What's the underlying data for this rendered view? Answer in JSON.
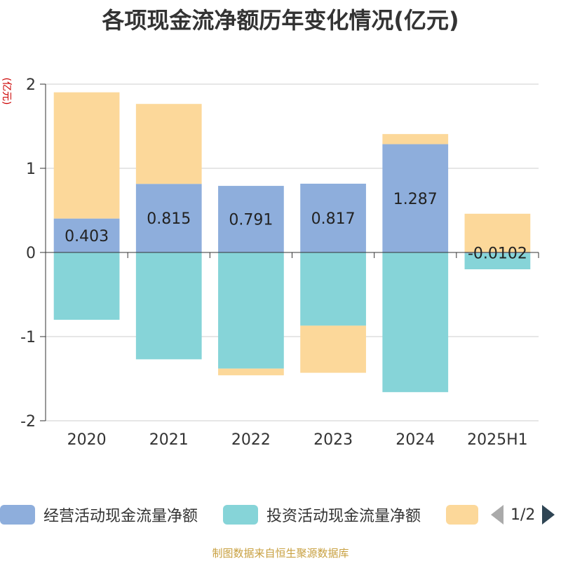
{
  "title": "各项现金流净额历年变化情况(亿元)",
  "unit_label": "(亿元)",
  "source_text": "制图数据来自恒生聚源数据库",
  "legend": {
    "items": [
      {
        "label": "经营活动现金流量净额",
        "color": "#8eaedc"
      },
      {
        "label": "投资活动现金流量净额",
        "color": "#86d4d8"
      },
      {
        "label": "",
        "color": "#fcd89a"
      }
    ],
    "pager": "1/2"
  },
  "chart_data": {
    "type": "bar",
    "stacked": true,
    "categories": [
      "2020",
      "2021",
      "2022",
      "2023",
      "2024",
      "2025H1"
    ],
    "ylim": [
      -2,
      2
    ],
    "yticks": [
      "-2",
      "-1",
      "0",
      "1",
      "2"
    ],
    "grid": true,
    "legend_position": "bottom",
    "series": [
      {
        "name": "经营活动现金流量净额",
        "color": "#8eaedc",
        "values": [
          0.403,
          0.815,
          0.791,
          0.817,
          1.287,
          -0.01
        ],
        "labels": [
          "0.403",
          "0.815",
          "0.791",
          "0.817",
          "1.287",
          "-0.0102"
        ]
      },
      {
        "name": "投资活动现金流量净额",
        "color": "#86d4d8",
        "values": [
          -0.8,
          -1.27,
          -1.38,
          -0.87,
          -1.66,
          -0.19
        ]
      },
      {
        "color": "#fcd89a",
        "values": [
          1.5,
          0.95,
          -0.08,
          -0.56,
          0.12,
          0.46
        ]
      }
    ]
  }
}
